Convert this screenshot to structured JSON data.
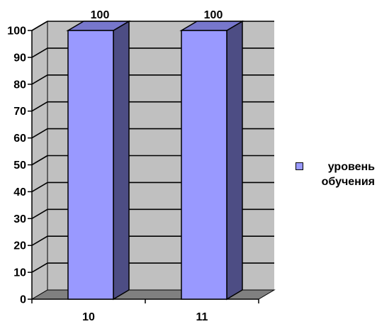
{
  "chart_data": {
    "type": "bar",
    "categories": [
      "10",
      "11"
    ],
    "series": [
      {
        "name": "уровень обучения",
        "values": [
          100,
          100
        ]
      }
    ],
    "ylim": [
      0,
      100
    ],
    "yticks": [
      "0",
      "10",
      "20",
      "30",
      "40",
      "50",
      "60",
      "70",
      "80",
      "90",
      "100"
    ],
    "data_labels": [
      "100",
      "100"
    ],
    "grid": true,
    "legend": "right",
    "colors": {
      "bar_front": "#9999ff",
      "bar_side": "#4d4d84",
      "bar_top": "#7777cc",
      "wall": "#c0c0c0",
      "floor": "#808080"
    }
  }
}
